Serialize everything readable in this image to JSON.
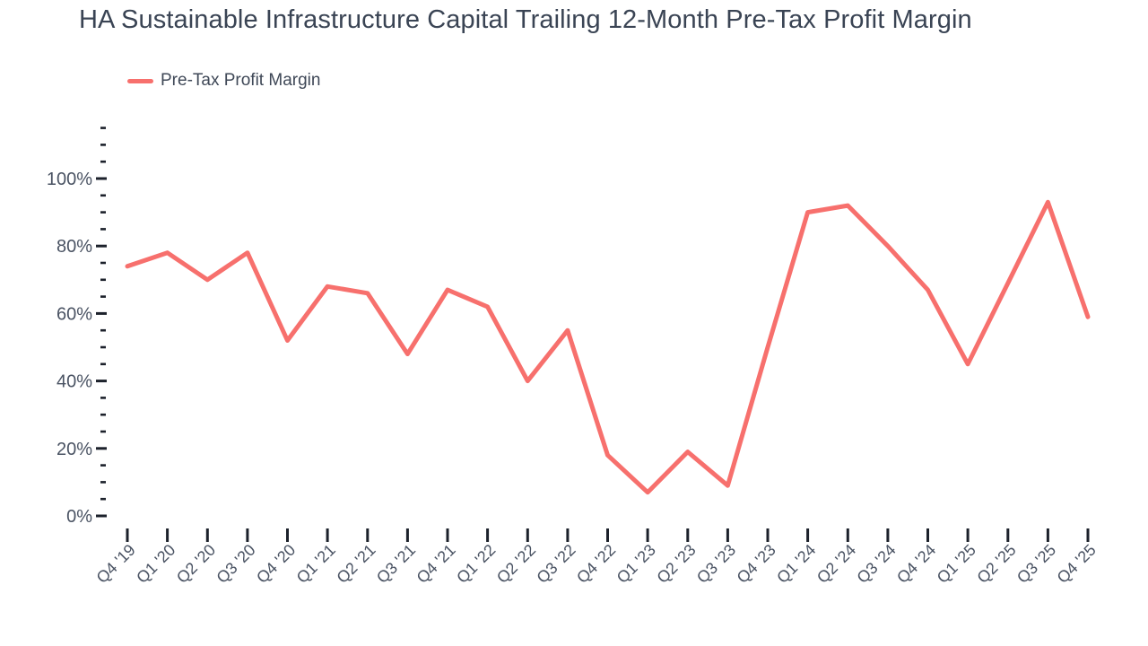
{
  "chart_data": {
    "type": "line",
    "title": "HA Sustainable Infrastructure Capital Trailing 12-Month Pre-Tax Profit Margin",
    "categories": [
      "Q4 '19",
      "Q1 '20",
      "Q2 '20",
      "Q3 '20",
      "Q4 '20",
      "Q1 '21",
      "Q2 '21",
      "Q3 '21",
      "Q4 '21",
      "Q1 '22",
      "Q2 '22",
      "Q3 '22",
      "Q4 '22",
      "Q1 '23",
      "Q2 '23",
      "Q3 '23",
      "Q4 '23",
      "Q1 '24",
      "Q2 '24",
      "Q3 '24",
      "Q4 '24",
      "Q1 '25",
      "Q2 '25",
      "Q3 '25",
      "Q4 '25"
    ],
    "series": [
      {
        "name": "Pre-Tax Profit Margin",
        "values": [
          74,
          78,
          70,
          78,
          52,
          68,
          66,
          48,
          67,
          62,
          40,
          55,
          18,
          7,
          19,
          9,
          50,
          90,
          92,
          80,
          67,
          45,
          69,
          93,
          59
        ]
      }
    ],
    "unit": "%",
    "xlabel": "",
    "ylabel": "",
    "ylim": [
      0,
      115
    ],
    "ytick_major": [
      0,
      20,
      40,
      60,
      80,
      100
    ],
    "ytick_labels": [
      "0%",
      "20%",
      "40%",
      "60%",
      "80%",
      "100%"
    ],
    "ytick_minor_step": 5,
    "grid": false,
    "legend_position": "top-left",
    "colors": {
      "line": "#f7706d",
      "title_text": "#3a4454",
      "axis_text": "#4a5363",
      "tick": "#1c212b"
    }
  }
}
